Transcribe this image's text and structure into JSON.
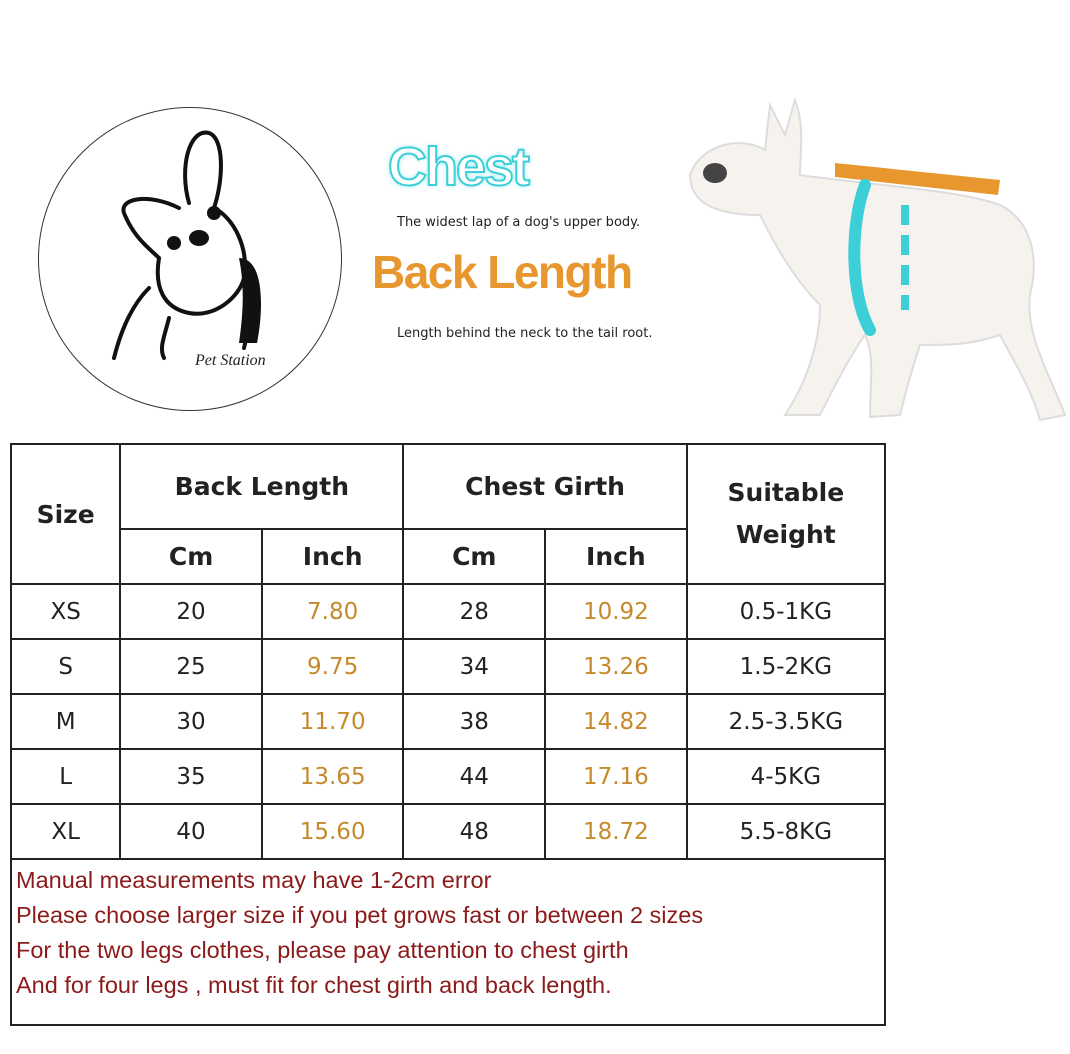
{
  "logo": {
    "brand": "Pet Station"
  },
  "legend": {
    "chest_title": "Chest",
    "chest_desc": "The widest lap of a dog's upper body.",
    "back_title": "Back Length",
    "back_desc": "Length behind the neck to the tail root.",
    "colors": {
      "chest": "#3ccfd8",
      "back_length": "#e8962e"
    }
  },
  "table": {
    "headers": {
      "size": "Size",
      "back_length": "Back Length",
      "chest_girth": "Chest Girth",
      "weight": "Suitable Weight",
      "cm": "Cm",
      "inch": "Inch"
    },
    "rows": [
      {
        "size": "XS",
        "back_cm": "20",
        "back_inch": "7.80",
        "chest_cm": "28",
        "chest_inch": "10.92",
        "weight": "0.5-1KG"
      },
      {
        "size": "S",
        "back_cm": "25",
        "back_inch": "9.75",
        "chest_cm": "34",
        "chest_inch": "13.26",
        "weight": "1.5-2KG"
      },
      {
        "size": "M",
        "back_cm": "30",
        "back_inch": "11.70",
        "chest_cm": "38",
        "chest_inch": "14.82",
        "weight": "2.5-3.5KG"
      },
      {
        "size": "L",
        "back_cm": "35",
        "back_inch": "13.65",
        "chest_cm": "44",
        "chest_inch": "17.16",
        "weight": "4-5KG"
      },
      {
        "size": "XL",
        "back_cm": "40",
        "back_inch": "15.60",
        "chest_cm": "48",
        "chest_inch": "18.72",
        "weight": "5.5-8KG"
      }
    ],
    "notes": [
      "Manual measurements may have 1-2cm error",
      "Please choose larger size if you pet grows fast or between 2 sizes",
      "For the two legs clothes,  please pay attention to chest girth",
      "And for four legs ,  must fit for chest girth and back length."
    ]
  }
}
